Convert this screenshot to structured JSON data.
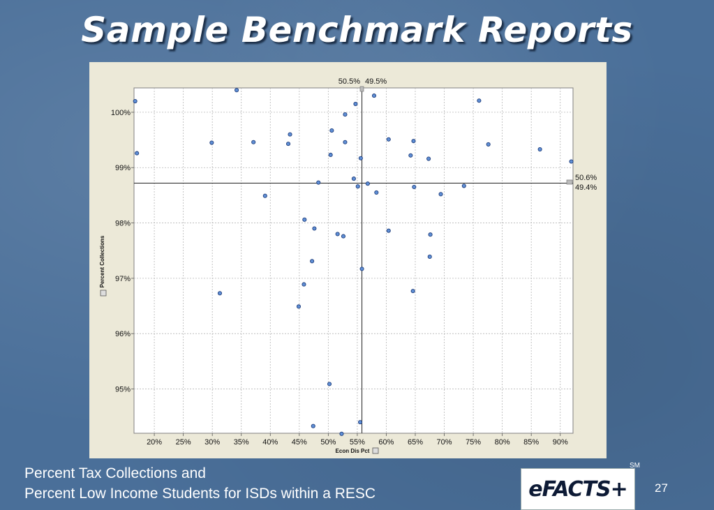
{
  "slide": {
    "title": "Sample Benchmark Reports",
    "caption_line1": "Percent Tax Collections and",
    "caption_line2": "Percent Low Income Students for ISDs within a RESC",
    "logo_text": "eFACTS+",
    "logo_mark": "SM",
    "page_number": "27"
  },
  "colors": {
    "background": "#4a6f99",
    "panel": "#ece9d8",
    "point_fill": "#5f8fd6",
    "point_stroke": "#1f3d7a"
  },
  "chart_data": {
    "type": "scatter",
    "xlabel": "Econ Dis Pct",
    "ylabel": "Percent Collections",
    "xlim": [
      16.5,
      92.2
    ],
    "ylim": [
      94.2,
      100.44
    ],
    "x_ticks": [
      "20%",
      "25%",
      "30%",
      "35%",
      "40%",
      "45%",
      "50%",
      "55%",
      "60%",
      "65%",
      "70%",
      "75%",
      "80%",
      "85%",
      "90%"
    ],
    "x_tick_values": [
      20,
      25,
      30,
      35,
      40,
      45,
      50,
      55,
      60,
      65,
      70,
      75,
      80,
      85,
      90
    ],
    "y_ticks": [
      "95%",
      "96%",
      "97%",
      "98%",
      "99%",
      "100%"
    ],
    "y_tick_values": [
      95,
      96,
      97,
      98,
      99,
      100
    ],
    "grid": true,
    "reference_lines": {
      "vertical_x": 55.8,
      "horizontal_y": 98.72,
      "top_label_left": "50.5%",
      "top_label_right": "49.5%",
      "right_label_top": "50.6%",
      "right_label_bottom": "49.4%"
    },
    "points": [
      {
        "x": 16.7,
        "y": 100.2
      },
      {
        "x": 17.0,
        "y": 99.26
      },
      {
        "x": 29.9,
        "y": 99.45
      },
      {
        "x": 31.3,
        "y": 96.73
      },
      {
        "x": 34.2,
        "y": 100.4
      },
      {
        "x": 37.1,
        "y": 99.46
      },
      {
        "x": 39.1,
        "y": 98.49
      },
      {
        "x": 43.1,
        "y": 99.43
      },
      {
        "x": 43.4,
        "y": 99.6
      },
      {
        "x": 44.9,
        "y": 96.49
      },
      {
        "x": 45.8,
        "y": 96.89
      },
      {
        "x": 45.9,
        "y": 98.06
      },
      {
        "x": 47.2,
        "y": 97.31
      },
      {
        "x": 47.4,
        "y": 94.33
      },
      {
        "x": 47.6,
        "y": 97.9
      },
      {
        "x": 48.3,
        "y": 98.73
      },
      {
        "x": 50.2,
        "y": 95.09
      },
      {
        "x": 50.4,
        "y": 99.23
      },
      {
        "x": 50.6,
        "y": 99.67
      },
      {
        "x": 51.6,
        "y": 97.8
      },
      {
        "x": 52.3,
        "y": 94.19
      },
      {
        "x": 52.6,
        "y": 97.76
      },
      {
        "x": 52.9,
        "y": 99.96
      },
      {
        "x": 52.9,
        "y": 99.46
      },
      {
        "x": 54.4,
        "y": 98.8
      },
      {
        "x": 54.7,
        "y": 100.15
      },
      {
        "x": 55.1,
        "y": 98.66
      },
      {
        "x": 55.5,
        "y": 94.4
      },
      {
        "x": 55.6,
        "y": 99.17
      },
      {
        "x": 55.8,
        "y": 97.17
      },
      {
        "x": 56.8,
        "y": 98.71
      },
      {
        "x": 57.9,
        "y": 100.3
      },
      {
        "x": 58.3,
        "y": 98.55
      },
      {
        "x": 60.4,
        "y": 99.51
      },
      {
        "x": 60.4,
        "y": 97.86
      },
      {
        "x": 64.2,
        "y": 99.22
      },
      {
        "x": 64.6,
        "y": 96.77
      },
      {
        "x": 64.7,
        "y": 99.48
      },
      {
        "x": 64.8,
        "y": 98.65
      },
      {
        "x": 67.3,
        "y": 99.16
      },
      {
        "x": 67.5,
        "y": 97.39
      },
      {
        "x": 67.6,
        "y": 97.79
      },
      {
        "x": 69.4,
        "y": 98.52
      },
      {
        "x": 73.4,
        "y": 98.67
      },
      {
        "x": 76.0,
        "y": 100.21
      },
      {
        "x": 77.6,
        "y": 99.42
      },
      {
        "x": 86.5,
        "y": 99.33
      },
      {
        "x": 91.9,
        "y": 99.11
      }
    ]
  }
}
